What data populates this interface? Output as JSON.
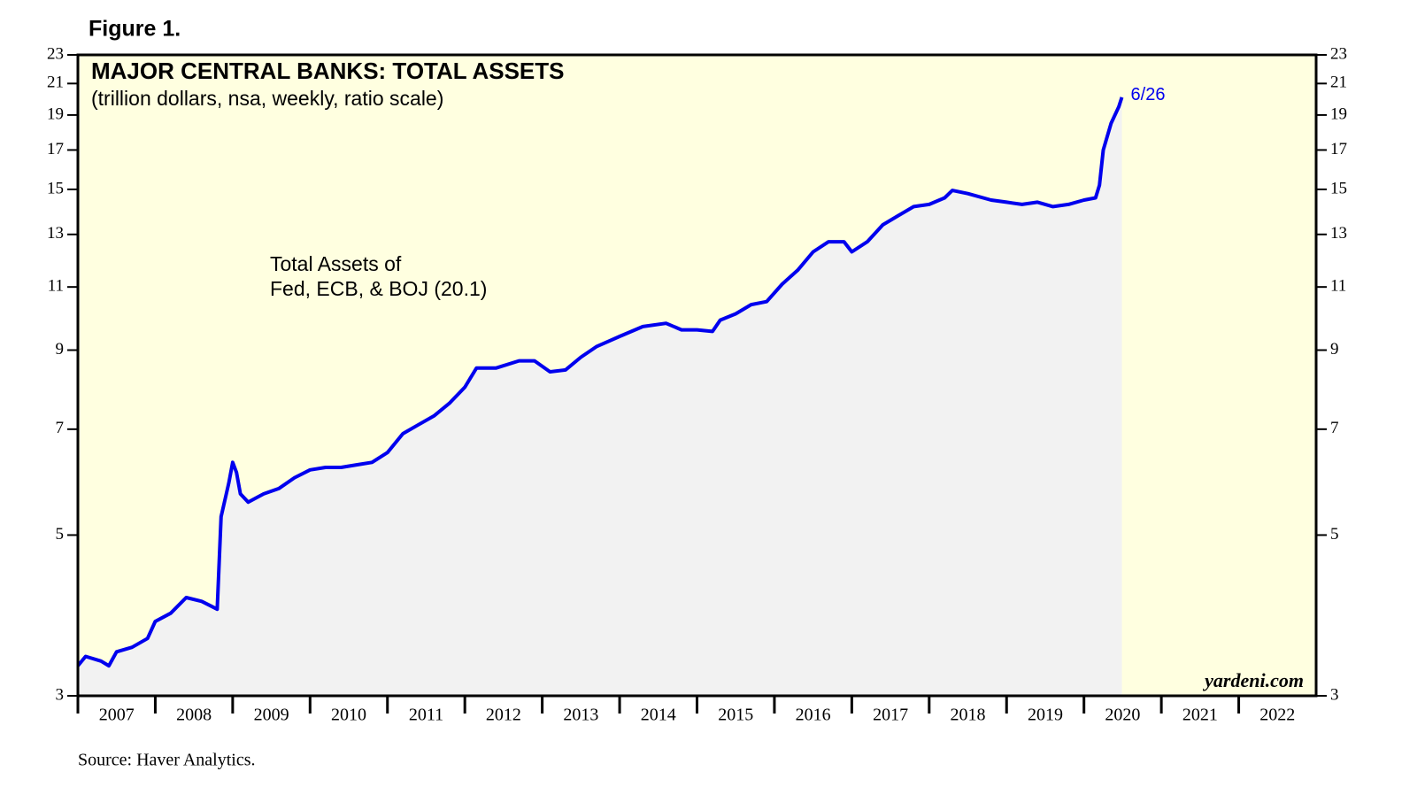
{
  "figure_label": "Figure 1.",
  "chart_data": {
    "type": "line",
    "title": "MAJOR CENTRAL BANKS: TOTAL ASSETS",
    "subtitle": "(trillion dollars, nsa, weekly, ratio scale)",
    "annotation": [
      "Total Assets of",
      "Fed, ECB, & BOJ (20.1)"
    ],
    "end_label": "6/26",
    "watermark": "yardeni.com",
    "source": "Source: Haver Analytics.",
    "log_scale": true,
    "ylim": [
      3,
      23
    ],
    "yticks": [
      3,
      5,
      7,
      9,
      11,
      13,
      15,
      17,
      19,
      21,
      23
    ],
    "xlim": [
      2007,
      2023
    ],
    "xticks": [
      2007,
      2008,
      2009,
      2010,
      2011,
      2012,
      2013,
      2014,
      2015,
      2016,
      2017,
      2018,
      2019,
      2020,
      2021,
      2022
    ],
    "background": "#ffffe0",
    "area_color": "#f2f2f2",
    "series": [
      {
        "name": "Total Assets of Fed, ECB, & BOJ",
        "color": "#0000ee",
        "x": [
          2007.0,
          2007.1,
          2007.3,
          2007.4,
          2007.5,
          2007.7,
          2007.9,
          2008.0,
          2008.1,
          2008.2,
          2008.4,
          2008.6,
          2008.7,
          2008.8,
          2008.85,
          2008.95,
          2009.0,
          2009.05,
          2009.1,
          2009.2,
          2009.4,
          2009.6,
          2009.8,
          2010.0,
          2010.2,
          2010.4,
          2010.6,
          2010.8,
          2011.0,
          2011.2,
          2011.4,
          2011.6,
          2011.8,
          2012.0,
          2012.15,
          2012.4,
          2012.7,
          2012.9,
          2013.1,
          2013.3,
          2013.5,
          2013.7,
          2014.0,
          2014.3,
          2014.6,
          2014.8,
          2015.0,
          2015.2,
          2015.3,
          2015.5,
          2015.7,
          2015.9,
          2016.1,
          2016.3,
          2016.5,
          2016.7,
          2016.9,
          2017.0,
          2017.2,
          2017.4,
          2017.6,
          2017.8,
          2018.0,
          2018.2,
          2018.3,
          2018.5,
          2018.8,
          2019.0,
          2019.2,
          2019.4,
          2019.6,
          2019.8,
          2020.0,
          2020.15,
          2020.2,
          2020.25,
          2020.35,
          2020.45,
          2020.49
        ],
        "values": [
          3.3,
          3.4,
          3.35,
          3.3,
          3.45,
          3.5,
          3.6,
          3.8,
          3.85,
          3.9,
          4.1,
          4.05,
          4.0,
          3.95,
          5.3,
          5.9,
          6.3,
          6.1,
          5.7,
          5.55,
          5.7,
          5.8,
          6.0,
          6.15,
          6.2,
          6.2,
          6.25,
          6.3,
          6.5,
          6.9,
          7.1,
          7.3,
          7.6,
          8.0,
          8.5,
          8.5,
          8.7,
          8.7,
          8.4,
          8.45,
          8.8,
          9.1,
          9.4,
          9.7,
          9.8,
          9.6,
          9.6,
          9.55,
          9.9,
          10.1,
          10.4,
          10.5,
          11.1,
          11.6,
          12.3,
          12.7,
          12.7,
          12.3,
          12.7,
          13.4,
          13.8,
          14.2,
          14.3,
          14.6,
          14.95,
          14.8,
          14.5,
          14.4,
          14.3,
          14.4,
          14.2,
          14.3,
          14.5,
          14.6,
          15.2,
          17.0,
          18.5,
          19.5,
          20.1
        ]
      }
    ]
  }
}
